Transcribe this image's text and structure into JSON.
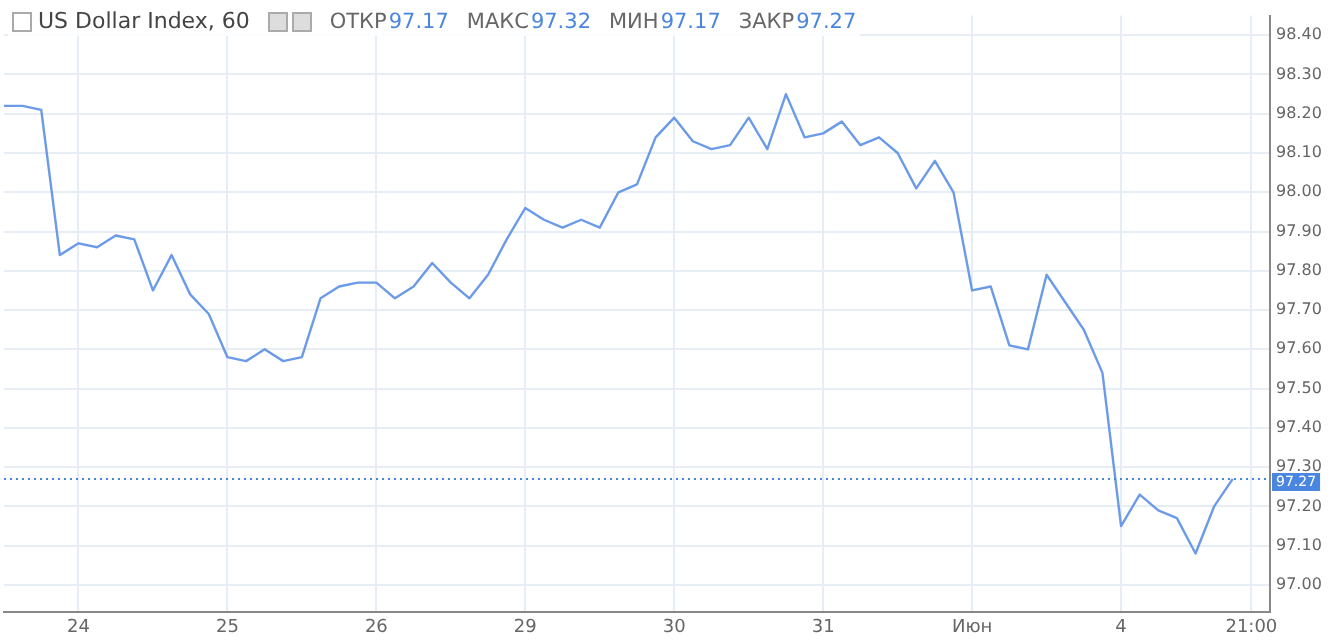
{
  "chart_data": {
    "type": "line",
    "title": "US Dollar Index, 60",
    "annotations": [
      "ОТКР",
      "97.17",
      "МАКС",
      "97.32",
      "МИН",
      "97.17",
      "ЗАКР",
      "97.27"
    ],
    "categories": [
      null,
      null,
      null,
      null,
      "24",
      null,
      null,
      null,
      null,
      null,
      null,
      null,
      "25",
      null,
      null,
      null,
      null,
      null,
      null,
      null,
      "26",
      null,
      null,
      null,
      null,
      null,
      null,
      null,
      "29",
      null,
      null,
      null,
      null,
      null,
      null,
      null,
      "30",
      null,
      null,
      null,
      null,
      null,
      null,
      null,
      "31",
      null,
      null,
      null,
      null,
      null,
      null,
      null,
      "Июн",
      null,
      null,
      null,
      null,
      null,
      null,
      null,
      "4",
      null,
      null,
      null,
      null,
      null,
      null,
      "21:00",
      null
    ],
    "series": [
      {
        "color": "#6a9ae8",
        "values": [
          98.22,
          98.22,
          98.21,
          97.84,
          97.87,
          97.86,
          97.89,
          97.88,
          97.75,
          97.84,
          97.74,
          97.69,
          97.58,
          97.57,
          97.6,
          97.57,
          97.58,
          97.73,
          97.76,
          97.77,
          97.77,
          97.73,
          97.76,
          97.82,
          97.77,
          97.73,
          97.79,
          97.88,
          97.96,
          97.93,
          97.91,
          97.93,
          97.91,
          98.0,
          98.02,
          98.14,
          98.19,
          98.13,
          98.11,
          98.12,
          98.19,
          98.11,
          98.25,
          98.14,
          98.15,
          98.18,
          98.12,
          98.14,
          98.1,
          98.01,
          98.08,
          98.0,
          97.75,
          97.76,
          97.61,
          97.6,
          97.79,
          97.72,
          97.65,
          97.54,
          97.15,
          97.23,
          97.19,
          97.17,
          97.08,
          97.2,
          97.27,
          null,
          null
        ]
      }
    ],
    "ylim": [
      96.93,
      98.45
    ],
    "yticks": [
      {
        "value": 97,
        "label": "97.00"
      },
      {
        "value": 97.1,
        "label": "97.10"
      },
      {
        "value": 97.2,
        "label": "97.20"
      },
      {
        "value": 97.3,
        "label": "97.30"
      },
      {
        "value": 97.4,
        "label": "97.40"
      },
      {
        "value": 97.5,
        "label": "97.50"
      },
      {
        "value": 97.6,
        "label": "97.60"
      },
      {
        "value": 97.7,
        "label": "97.70"
      },
      {
        "value": 97.8,
        "label": "97.80"
      },
      {
        "value": 97.9,
        "label": "97.90"
      },
      {
        "value": 98,
        "label": "98.00"
      },
      {
        "value": 98.1,
        "label": "98.10"
      },
      {
        "value": 98.2,
        "label": "98.20"
      },
      {
        "value": 98.3,
        "label": "98.30"
      },
      {
        "value": 98.4,
        "label": "98.40"
      }
    ],
    "ref_lines": [
      {
        "axis": "y",
        "value": 97.27,
        "label": "97.27",
        "color": "#4a86e0",
        "line_style": "dotted"
      }
    ],
    "grid": true,
    "legend": false,
    "marker": "none",
    "line_style": "solid"
  }
}
